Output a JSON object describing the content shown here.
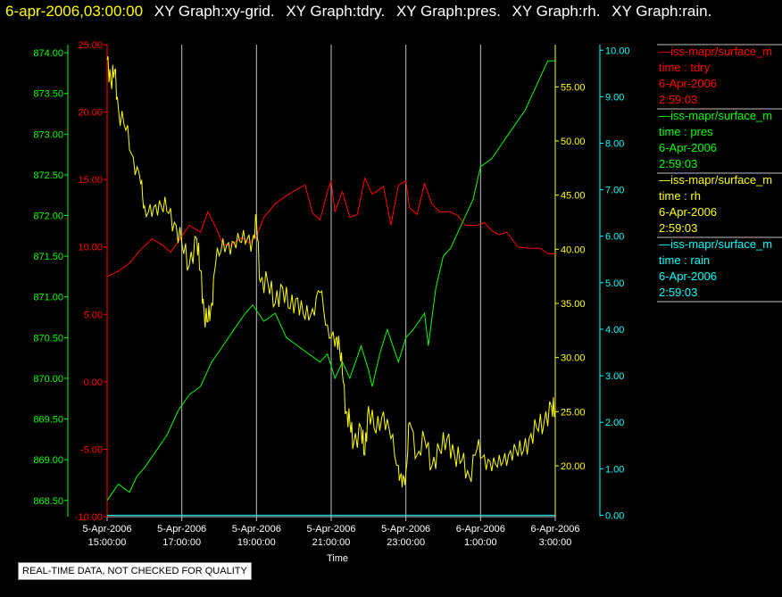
{
  "header": {
    "timestamp": "6-apr-2006,03:00:00",
    "graph_titles": [
      "XY Graph:xy-grid.",
      "XY Graph:tdry.",
      "XY Graph:pres.",
      "XY Graph:rh.",
      "XY Graph:rain."
    ]
  },
  "quality_note": "REAL-TIME DATA, NOT CHECKED FOR QUALITY",
  "colors": {
    "tdry": "#ff0000",
    "pres": "#00ff00",
    "rh": "#ffff00",
    "rain": "#00ffff",
    "grid": "#c0c0c0"
  },
  "chart_data": {
    "type": "line",
    "xlabel": "Time",
    "x_ticks": [
      {
        "hours": 0,
        "line1": "5-Apr-2006",
        "line2": "15:00:00"
      },
      {
        "hours": 2,
        "line1": "5-Apr-2006",
        "line2": "17:00:00"
      },
      {
        "hours": 4,
        "line1": "5-Apr-2006",
        "line2": "19:00:00"
      },
      {
        "hours": 6,
        "line1": "5-Apr-2006",
        "line2": "21:00:00"
      },
      {
        "hours": 8,
        "line1": "5-Apr-2006",
        "line2": "23:00:00"
      },
      {
        "hours": 10,
        "line1": "6-Apr-2006",
        "line2": "1:00:00"
      },
      {
        "hours": 12,
        "line1": "6-Apr-2006",
        "line2": "3:00:00"
      }
    ],
    "xlim": [
      0,
      12
    ],
    "vertical_grid": true,
    "axes": {
      "tdry": {
        "range": [
          -10,
          25
        ],
        "ticks": [
          "-10.00",
          "-5.00",
          "0.00",
          "5.00",
          "10.00",
          "15.00",
          "20.00",
          "25.00"
        ]
      },
      "pres": {
        "range": [
          868.3,
          874.1
        ],
        "ticks": [
          "868.50",
          "869.00",
          "869.50",
          "870.00",
          "870.50",
          "871.00",
          "871.50",
          "872.00",
          "872.50",
          "873.00",
          "873.50",
          "874.00"
        ]
      },
      "rh": {
        "range": [
          15.3,
          58.9
        ],
        "ticks": [
          "20.00",
          "25.00",
          "30.00",
          "35.00",
          "40.00",
          "45.00",
          "50.00",
          "55.00"
        ]
      },
      "rain": {
        "range": [
          -0.03,
          10.12
        ],
        "ticks": [
          "0.00",
          "1.00",
          "2.00",
          "3.00",
          "4.00",
          "5.00",
          "6.00",
          "7.00",
          "8.00",
          "9.00",
          "10.00"
        ]
      }
    },
    "series": [
      {
        "key": "tdry",
        "points": [
          [
            0,
            7.8
          ],
          [
            0.3,
            8.2
          ],
          [
            0.6,
            8.8
          ],
          [
            0.9,
            9.8
          ],
          [
            1.2,
            10.6
          ],
          [
            1.5,
            10.1
          ],
          [
            1.7,
            9.6
          ],
          [
            2.0,
            10.8
          ],
          [
            2.2,
            11.6
          ],
          [
            2.5,
            11.1
          ],
          [
            2.7,
            12.6
          ],
          [
            2.9,
            11.5
          ],
          [
            3.1,
            10.2
          ],
          [
            3.3,
            10.1
          ],
          [
            3.6,
            10.7
          ],
          [
            3.8,
            10.3
          ],
          [
            4.0,
            10.8
          ],
          [
            4.2,
            12.2
          ],
          [
            4.5,
            13.2
          ],
          [
            4.8,
            13.8
          ],
          [
            5.1,
            14.3
          ],
          [
            5.3,
            14.6
          ],
          [
            5.5,
            12.5
          ],
          [
            5.7,
            12.0
          ],
          [
            5.9,
            14.1
          ],
          [
            6.0,
            14.9
          ],
          [
            6.1,
            12.6
          ],
          [
            6.3,
            14.1
          ],
          [
            6.5,
            12.2
          ],
          [
            6.7,
            12.4
          ],
          [
            6.9,
            15.1
          ],
          [
            7.1,
            13.9
          ],
          [
            7.4,
            14.5
          ],
          [
            7.6,
            11.6
          ],
          [
            7.8,
            14.6
          ],
          [
            8.0,
            14.9
          ],
          [
            8.1,
            12.9
          ],
          [
            8.3,
            12.4
          ],
          [
            8.5,
            14.7
          ],
          [
            8.7,
            13.2
          ],
          [
            8.9,
            12.6
          ],
          [
            9.2,
            12.6
          ],
          [
            9.4,
            12.3
          ],
          [
            9.6,
            11.6
          ],
          [
            9.9,
            11.6
          ],
          [
            10.1,
            11.8
          ],
          [
            10.3,
            11.2
          ],
          [
            10.5,
            10.9
          ],
          [
            10.7,
            11.1
          ],
          [
            11.0,
            10.0
          ],
          [
            11.3,
            9.9
          ],
          [
            11.6,
            9.9
          ],
          [
            11.8,
            9.5
          ],
          [
            12.0,
            9.5
          ]
        ]
      },
      {
        "key": "pres",
        "points": [
          [
            0,
            868.5
          ],
          [
            0.3,
            868.7
          ],
          [
            0.6,
            868.6
          ],
          [
            0.8,
            868.8
          ],
          [
            1.0,
            868.9
          ],
          [
            1.3,
            869.1
          ],
          [
            1.6,
            869.3
          ],
          [
            1.9,
            869.6
          ],
          [
            2.2,
            869.8
          ],
          [
            2.5,
            869.9
          ],
          [
            2.8,
            870.2
          ],
          [
            3.1,
            870.4
          ],
          [
            3.4,
            870.6
          ],
          [
            3.7,
            870.8
          ],
          [
            3.9,
            870.9
          ],
          [
            4.2,
            870.7
          ],
          [
            4.5,
            870.8
          ],
          [
            4.8,
            870.5
          ],
          [
            5.1,
            870.4
          ],
          [
            5.4,
            870.3
          ],
          [
            5.7,
            870.2
          ],
          [
            5.9,
            870.3
          ],
          [
            6.1,
            870.0
          ],
          [
            6.3,
            870.2
          ],
          [
            6.5,
            870.0
          ],
          [
            6.8,
            870.4
          ],
          [
            7.0,
            870.1
          ],
          [
            7.1,
            869.9
          ],
          [
            7.3,
            870.3
          ],
          [
            7.5,
            870.6
          ],
          [
            7.8,
            870.2
          ],
          [
            8.0,
            870.5
          ],
          [
            8.2,
            870.6
          ],
          [
            8.5,
            870.8
          ],
          [
            8.6,
            870.4
          ],
          [
            8.8,
            871.1
          ],
          [
            9.0,
            871.5
          ],
          [
            9.2,
            871.6
          ],
          [
            9.5,
            871.9
          ],
          [
            9.8,
            872.2
          ],
          [
            10.0,
            872.6
          ],
          [
            10.3,
            872.7
          ],
          [
            10.6,
            872.9
          ],
          [
            10.9,
            873.1
          ],
          [
            11.2,
            873.3
          ],
          [
            11.5,
            873.6
          ],
          [
            11.8,
            873.9
          ],
          [
            12.0,
            873.9
          ]
        ]
      },
      {
        "key": "rh",
        "points": [
          [
            0,
            57.5
          ],
          [
            0.1,
            55.5
          ],
          [
            0.2,
            56.5
          ],
          [
            0.3,
            53.0
          ],
          [
            0.5,
            51.0
          ],
          [
            0.7,
            48.5
          ],
          [
            0.9,
            46.0
          ],
          [
            1.0,
            44.0
          ],
          [
            1.2,
            43.0
          ],
          [
            1.4,
            44.5
          ],
          [
            1.6,
            43.5
          ],
          [
            1.8,
            42.5
          ],
          [
            2.0,
            40.5
          ],
          [
            2.2,
            38.5
          ],
          [
            2.4,
            41.0
          ],
          [
            2.5,
            38.0
          ],
          [
            2.6,
            34.0
          ],
          [
            2.7,
            33.3
          ],
          [
            2.8,
            35.0
          ],
          [
            2.9,
            38.5
          ],
          [
            3.1,
            41.0
          ],
          [
            3.3,
            39.5
          ],
          [
            3.5,
            41.5
          ],
          [
            3.7,
            40.5
          ],
          [
            3.9,
            41.0
          ],
          [
            4.0,
            42.5
          ],
          [
            4.1,
            37.0
          ],
          [
            4.3,
            37.0
          ],
          [
            4.5,
            35.0
          ],
          [
            4.7,
            36.5
          ],
          [
            4.9,
            34.5
          ],
          [
            5.1,
            35.5
          ],
          [
            5.3,
            33.5
          ],
          [
            5.5,
            34.5
          ],
          [
            5.7,
            36.0
          ],
          [
            5.9,
            33.0
          ],
          [
            6.1,
            31.0
          ],
          [
            6.2,
            32.0
          ],
          [
            6.3,
            28.5
          ],
          [
            6.4,
            25.0
          ],
          [
            6.5,
            24.0
          ],
          [
            6.6,
            22.0
          ],
          [
            6.8,
            23.5
          ],
          [
            6.9,
            21.0
          ],
          [
            7.0,
            25.5
          ],
          [
            7.2,
            23.0
          ],
          [
            7.4,
            25.0
          ],
          [
            7.6,
            22.5
          ],
          [
            7.8,
            20.0
          ],
          [
            7.9,
            18.0
          ],
          [
            8.0,
            19.5
          ],
          [
            8.1,
            24.0
          ],
          [
            8.3,
            21.0
          ],
          [
            8.5,
            22.5
          ],
          [
            8.7,
            20.0
          ],
          [
            8.9,
            21.5
          ],
          [
            9.1,
            22.5
          ],
          [
            9.3,
            21.0
          ],
          [
            9.5,
            20.5
          ],
          [
            9.7,
            19.0
          ],
          [
            9.9,
            21.5
          ],
          [
            10.1,
            21.0
          ],
          [
            10.3,
            19.5
          ],
          [
            10.5,
            21.0
          ],
          [
            10.7,
            20.0
          ],
          [
            10.9,
            22.0
          ],
          [
            11.1,
            21.0
          ],
          [
            11.3,
            22.5
          ],
          [
            11.5,
            23.5
          ],
          [
            11.7,
            24.0
          ],
          [
            11.9,
            25.5
          ],
          [
            12.0,
            25.0
          ]
        ]
      },
      {
        "key": "rain",
        "points": [
          [
            0,
            0
          ],
          [
            12,
            0
          ]
        ]
      }
    ],
    "legend": [
      {
        "key": "tdry",
        "line": "—iss-mapr/surface_m",
        "label": "time : tdry",
        "date": "6-Apr-2006",
        "time": "2:59:03"
      },
      {
        "key": "pres",
        "line": "—iss-mapr/surface_m",
        "label": "time : pres",
        "date": "6-Apr-2006",
        "time": "2:59:03"
      },
      {
        "key": "rh",
        "line": "—iss-mapr/surface_m",
        "label": "time : rh",
        "date": "6-Apr-2006",
        "time": "2:59:03"
      },
      {
        "key": "rain",
        "line": "—iss-mapr/surface_m",
        "label": "time : rain",
        "date": "6-Apr-2006",
        "time": "2:59:03"
      }
    ]
  }
}
